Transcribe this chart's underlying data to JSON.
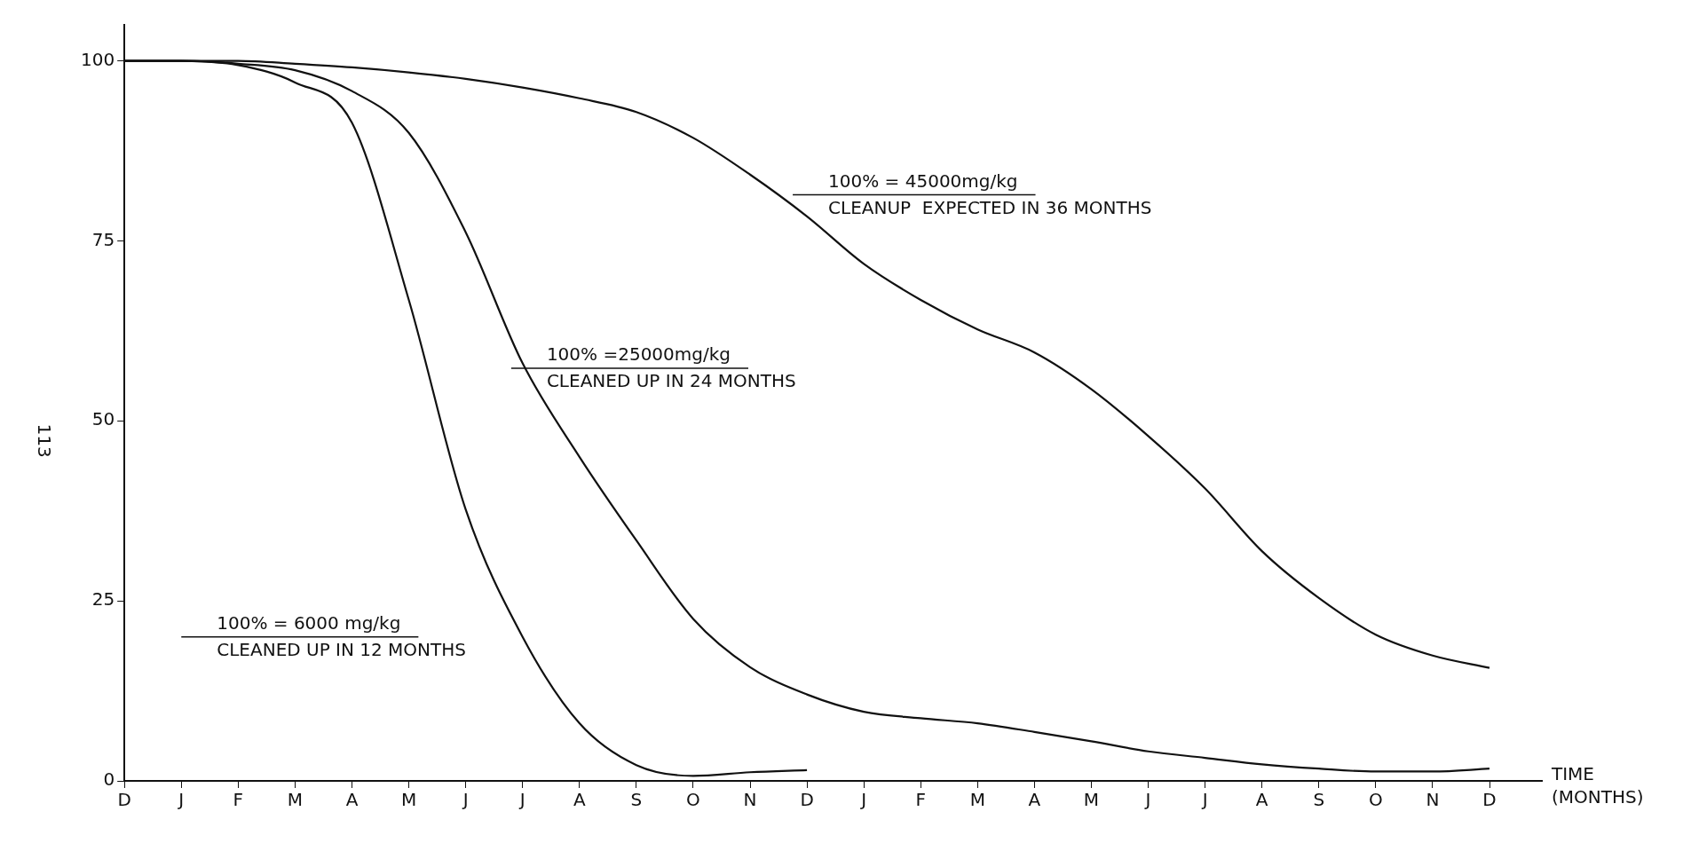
{
  "chart_data": {
    "type": "line",
    "xlabel": "TIME (MONTHS)",
    "categories": [
      "D",
      "J",
      "F",
      "M",
      "A",
      "M",
      "J",
      "J",
      "A",
      "S",
      "O",
      "N",
      "D",
      "J",
      "F",
      "M",
      "A",
      "M",
      "J",
      "J",
      "A",
      "S",
      "O",
      "N",
      "D"
    ],
    "ylim": [
      0,
      105
    ],
    "yticks": [
      0,
      25,
      50,
      75,
      100
    ],
    "series": [
      {
        "color": "#111111",
        "values": [
          100,
          100,
          99.4,
          97,
          91.4,
          66.8,
          37.7,
          20,
          8,
          2.2,
          0.7,
          1.2,
          1.5,
          null,
          null,
          null,
          null,
          null,
          null,
          null,
          null,
          null,
          null,
          null,
          null
        ]
      },
      {
        "color": "#111111",
        "values": [
          100,
          100,
          99.6,
          98.7,
          95.8,
          90,
          76.2,
          58,
          45,
          33.4,
          22.5,
          15.8,
          12,
          9.6,
          8.7,
          8,
          6.8,
          5.5,
          4.1,
          3.2,
          2.3,
          1.7,
          1.3,
          1.3,
          1.7
        ]
      },
      {
        "color": "#111111",
        "values": [
          100,
          100,
          100,
          99.6,
          99.1,
          98.4,
          97.5,
          96.3,
          94.8,
          92.9,
          89.3,
          84.2,
          78.4,
          71.8,
          66.8,
          62.7,
          59.5,
          54.4,
          47.9,
          40.6,
          31.9,
          25.4,
          20.3,
          17.4,
          15.7
        ]
      }
    ],
    "annotations": [
      "100% = 45000mg/kg\nCLEANUP  EXPECTED IN 36 MONTHS",
      "100% =25000mg/kg\nCLEANED UP IN 24 MONTHS",
      "100% = 6000 mg/kg\nCLEANED UP IN 12 MONTHS",
      "113"
    ],
    "grid": false,
    "legend": false,
    "marker": "none",
    "line_style": "solid"
  }
}
